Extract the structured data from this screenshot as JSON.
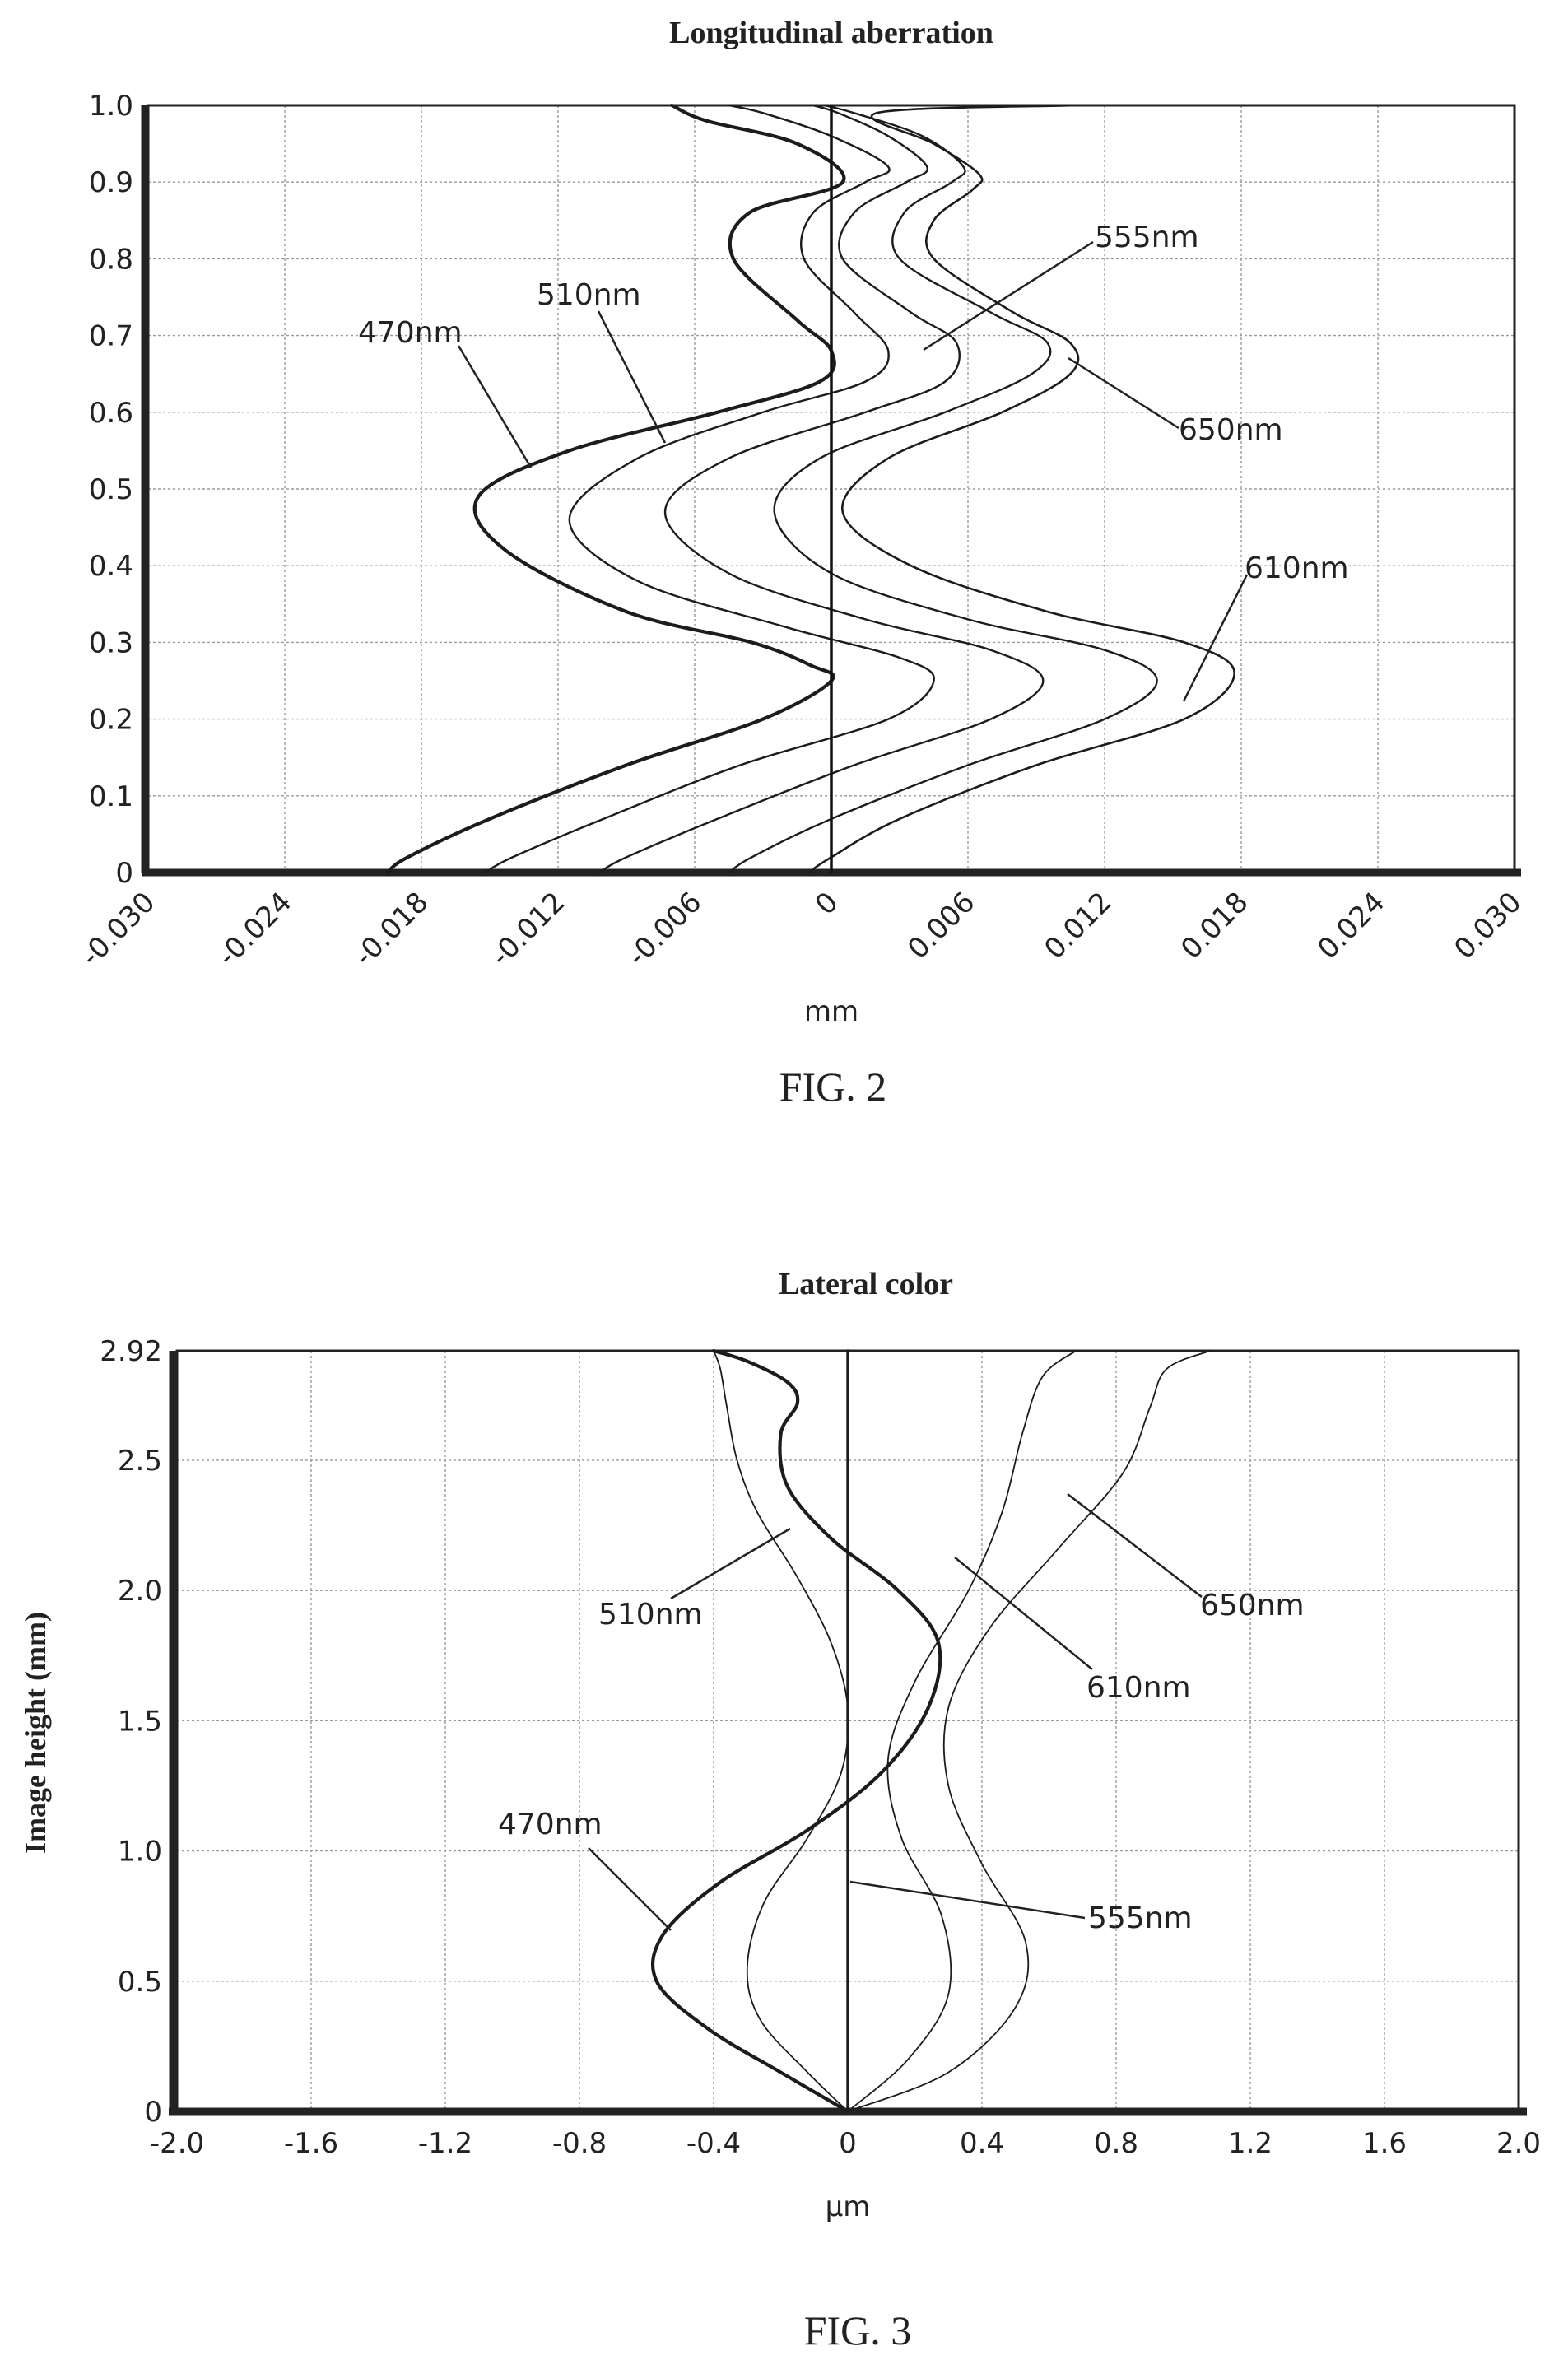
{
  "chart_data": [
    {
      "type": "line",
      "title": "Longitudinal aberration",
      "figure_caption": "FIG. 2",
      "xlabel": "mm",
      "ylabel": "",
      "xlim": [
        -0.03,
        0.03
      ],
      "ylim": [
        0,
        1.0
      ],
      "x_ticks": [
        "-0.030",
        "-0.024",
        "-0.018",
        "-0.012",
        "-0.006",
        "0",
        "0.006",
        "0.012",
        "0.018",
        "0.024",
        "0.030"
      ],
      "y_ticks": [
        "0",
        "0.1",
        "0.2",
        "0.3",
        "0.4",
        "0.5",
        "0.6",
        "0.7",
        "0.8",
        "0.9",
        "1.0"
      ],
      "grid": true,
      "series": [
        {
          "name": "470nm",
          "x": [
            -0.0195,
            -0.0186,
            -0.015,
            -0.009,
            -0.003,
            0.0,
            -0.0009,
            -0.0035,
            -0.009,
            -0.0143,
            -0.0155,
            -0.0115,
            -0.005,
            -0.0005,
            0.0,
            -0.0015,
            -0.0043,
            -0.0036,
            0.0005,
            -0.0015,
            -0.0055,
            -0.007
          ],
          "y": [
            0.0,
            0.02,
            0.07,
            0.14,
            0.2,
            0.25,
            0.27,
            0.3,
            0.34,
            0.42,
            0.49,
            0.55,
            0.6,
            0.64,
            0.68,
            0.72,
            0.8,
            0.86,
            0.9,
            0.95,
            0.98,
            1.0
          ]
        },
        {
          "name": "510nm",
          "x": [
            -0.0152,
            -0.014,
            -0.01,
            -0.004,
            0.0025,
            0.0045,
            0.003,
            -0.002,
            -0.0085,
            -0.0115,
            -0.0085,
            -0.003,
            0.0015,
            0.0025,
            0.001,
            -0.0012,
            -0.0008,
            0.0015,
            0.0025,
            0.0,
            -0.003,
            -0.0045
          ],
          "y": [
            0.0,
            0.02,
            0.07,
            0.14,
            0.2,
            0.25,
            0.28,
            0.32,
            0.38,
            0.46,
            0.54,
            0.6,
            0.64,
            0.68,
            0.73,
            0.8,
            0.86,
            0.9,
            0.92,
            0.96,
            0.99,
            1.0
          ]
        },
        {
          "name": "555nm",
          "x": [
            -0.0102,
            -0.009,
            -0.005,
            0.001,
            0.007,
            0.0093,
            0.007,
            0.0015,
            -0.0045,
            -0.0073,
            -0.0045,
            0.0015,
            0.005,
            0.0055,
            0.0035,
            0.0005,
            0.001,
            0.0033,
            0.0042,
            0.0025,
            0.0003,
            -0.0008
          ],
          "y": [
            0.0,
            0.02,
            0.07,
            0.14,
            0.2,
            0.25,
            0.29,
            0.33,
            0.39,
            0.47,
            0.54,
            0.6,
            0.64,
            0.69,
            0.73,
            0.8,
            0.86,
            0.9,
            0.92,
            0.96,
            0.99,
            1.0
          ]
        },
        {
          "name": "610nm",
          "x": [
            -0.0045,
            -0.0035,
            0.0,
            0.006,
            0.012,
            0.0143,
            0.012,
            0.006,
            0.0,
            -0.0025,
            -0.0005,
            0.005,
            0.0088,
            0.0095,
            0.007,
            0.003,
            0.0032,
            0.0053,
            0.0058,
            0.004,
            0.001,
            -0.0003
          ],
          "y": [
            0.0,
            0.02,
            0.07,
            0.14,
            0.2,
            0.25,
            0.29,
            0.33,
            0.39,
            0.47,
            0.54,
            0.6,
            0.65,
            0.69,
            0.73,
            0.8,
            0.86,
            0.9,
            0.92,
            0.96,
            0.99,
            1.0
          ]
        },
        {
          "name": "650nm",
          "x": [
            -0.001,
            0.0,
            0.003,
            0.009,
            0.0155,
            0.0177,
            0.0155,
            0.0095,
            0.0035,
            0.0005,
            0.0025,
            0.0075,
            0.0105,
            0.0105,
            0.008,
            0.0045,
            0.0045,
            0.0062,
            0.0065,
            0.0045,
            0.002,
            0.0108
          ],
          "y": [
            0.0,
            0.02,
            0.07,
            0.14,
            0.2,
            0.26,
            0.3,
            0.34,
            0.4,
            0.47,
            0.54,
            0.6,
            0.65,
            0.69,
            0.73,
            0.8,
            0.85,
            0.89,
            0.91,
            0.95,
            0.99,
            1.0
          ]
        }
      ],
      "annotations": [
        "470nm",
        "510nm",
        "555nm",
        "610nm",
        "650nm"
      ]
    },
    {
      "type": "line",
      "title": "Lateral color",
      "figure_caption": "FIG. 3",
      "xlabel": "µm",
      "ylabel": "Image height (mm)",
      "xlim": [
        -2.0,
        2.0
      ],
      "ylim": [
        0,
        2.92
      ],
      "x_ticks": [
        "-2.0",
        "-1.6",
        "-1.2",
        "-0.8",
        "-0.4",
        "0",
        "0.4",
        "0.8",
        "1.2",
        "1.6",
        "2.0"
      ],
      "y_ticks": [
        "0",
        "0.5",
        "1.0",
        "1.5",
        "2.0",
        "2.5",
        "2.92"
      ],
      "grid": true,
      "series": [
        {
          "name": "470nm",
          "x": [
            0.0,
            -0.2,
            -0.42,
            -0.57,
            -0.55,
            -0.38,
            -0.12,
            0.1,
            0.24,
            0.27,
            0.15,
            -0.05,
            -0.18,
            -0.2,
            -0.15,
            -0.18,
            -0.3,
            -0.4
          ],
          "y": [
            0.0,
            0.15,
            0.32,
            0.5,
            0.68,
            0.88,
            1.08,
            1.3,
            1.55,
            1.8,
            2.0,
            2.2,
            2.4,
            2.6,
            2.72,
            2.8,
            2.88,
            2.92
          ]
        },
        {
          "name": "510nm",
          "x": [
            0.0,
            -0.12,
            -0.26,
            -0.3,
            -0.25,
            -0.12,
            -0.02,
            0.0,
            -0.05,
            -0.15,
            -0.27,
            -0.33,
            -0.36,
            -0.38,
            -0.4
          ],
          "y": [
            0.0,
            0.15,
            0.35,
            0.55,
            0.8,
            1.05,
            1.3,
            1.55,
            1.8,
            2.05,
            2.3,
            2.5,
            2.7,
            2.85,
            2.92
          ]
        },
        {
          "name": "555nm",
          "x": [
            0.0,
            0.0,
            0.0,
            0.0,
            0.0,
            0.0,
            0.0,
            0.0
          ],
          "y": [
            0.0,
            0.4,
            0.8,
            1.2,
            1.6,
            2.0,
            2.5,
            2.92
          ]
        },
        {
          "name": "610nm",
          "x": [
            0.0,
            0.18,
            0.3,
            0.28,
            0.16,
            0.12,
            0.2,
            0.36,
            0.46,
            0.52,
            0.58,
            0.68
          ],
          "y": [
            0.0,
            0.2,
            0.45,
            0.75,
            1.05,
            1.35,
            1.65,
            2.0,
            2.3,
            2.6,
            2.82,
            2.92
          ]
        },
        {
          "name": "650nm",
          "x": [
            0.0,
            0.3,
            0.5,
            0.53,
            0.4,
            0.3,
            0.3,
            0.42,
            0.62,
            0.82,
            0.9,
            0.95,
            1.08
          ],
          "y": [
            0.0,
            0.15,
            0.4,
            0.65,
            0.95,
            1.25,
            1.55,
            1.85,
            2.15,
            2.45,
            2.7,
            2.85,
            2.92
          ]
        }
      ],
      "annotations": [
        "470nm",
        "510nm",
        "555nm",
        "610nm",
        "650nm"
      ]
    }
  ]
}
